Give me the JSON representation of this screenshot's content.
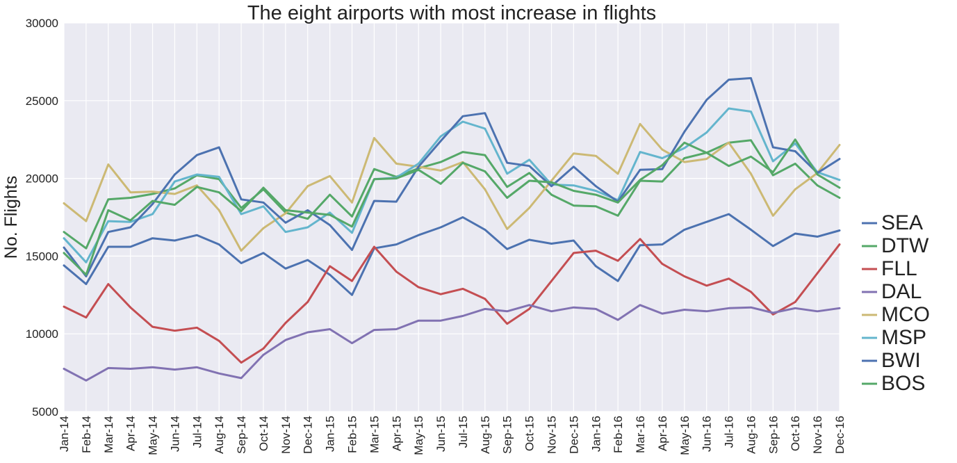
{
  "chart_data": {
    "type": "line",
    "title": "The eight airports with most increase in flights",
    "xlabel": "",
    "ylabel": "No. Flights",
    "ylim": [
      5000,
      30000
    ],
    "yticks": [
      5000,
      10000,
      15000,
      20000,
      25000,
      30000
    ],
    "grid": true,
    "legend_position": "right",
    "categories": [
      "Jan-14",
      "Feb-14",
      "Mar-14",
      "Apr-14",
      "May-14",
      "Jun-14",
      "Jul-14",
      "Aug-14",
      "Sep-14",
      "Oct-14",
      "Nov-14",
      "Dec-14",
      "Jan-15",
      "Feb-15",
      "Mar-15",
      "Apr-15",
      "May-15",
      "Jun-15",
      "Jul-15",
      "Aug-15",
      "Sep-15",
      "Oct-15",
      "Nov-15",
      "Dec-15",
      "Jan-16",
      "Feb-16",
      "Mar-16",
      "Apr-16",
      "May-16",
      "Jun-16",
      "Jul-16",
      "Aug-16",
      "Sep-16",
      "Oct-16",
      "Nov-16",
      "Dec-16"
    ],
    "series": [
      {
        "name": "SEA",
        "color": "#4c72b0",
        "values": [
          14400,
          13200,
          15600,
          15600,
          16150,
          16000,
          16350,
          15750,
          14550,
          15200,
          14200,
          14750,
          13800,
          12500,
          15500,
          15750,
          16350,
          16850,
          17500,
          16700,
          15450,
          16050,
          15800,
          16000,
          14350,
          13400,
          15700,
          15750,
          16700,
          17200,
          17700,
          16700,
          15650,
          16450,
          16250,
          16650
        ]
      },
      {
        "name": "DTW",
        "color": "#55a868",
        "values": [
          16550,
          15500,
          18650,
          18750,
          19000,
          19350,
          20200,
          19950,
          18100,
          19300,
          17800,
          17400,
          18950,
          17550,
          20600,
          20100,
          20650,
          21050,
          21700,
          21500,
          19450,
          20350,
          18950,
          18250,
          18200,
          17600,
          19850,
          19800,
          21300,
          21650,
          22300,
          22450,
          20200,
          20950,
          19550,
          18750
        ]
      },
      {
        "name": "FLL",
        "color": "#c44e52",
        "values": [
          11750,
          11050,
          13200,
          11700,
          10450,
          10200,
          10400,
          9550,
          8150,
          9050,
          10700,
          12050,
          14350,
          13400,
          15600,
          14000,
          13000,
          12550,
          12900,
          12250,
          10650,
          11600,
          13400,
          15200,
          15350,
          14700,
          16100,
          14500,
          13700,
          13100,
          13550,
          12700,
          11250,
          12050,
          13900,
          15750
        ]
      },
      {
        "name": "DAL",
        "color": "#8172b2",
        "values": [
          7750,
          7000,
          7800,
          7750,
          7850,
          7700,
          7850,
          7450,
          7150,
          8650,
          9600,
          10100,
          10300,
          9400,
          10250,
          10300,
          10850,
          10850,
          11150,
          11600,
          11450,
          11850,
          11450,
          11700,
          11600,
          10900,
          11850,
          11300,
          11550,
          11450,
          11650,
          11700,
          11350,
          11650,
          11450,
          11650
        ]
      },
      {
        "name": "MCO",
        "color": "#ccb974",
        "values": [
          18400,
          17250,
          20900,
          19100,
          19150,
          19000,
          19550,
          17950,
          15350,
          16800,
          17750,
          19500,
          20150,
          18450,
          22600,
          20950,
          20750,
          20500,
          21050,
          19300,
          16750,
          18100,
          19850,
          21600,
          21450,
          20300,
          23500,
          21850,
          21050,
          21250,
          22300,
          20300,
          17600,
          19300,
          20350,
          22150
        ]
      },
      {
        "name": "MSP",
        "color": "#64b5cd",
        "values": [
          16150,
          14600,
          17250,
          17200,
          17700,
          19800,
          20250,
          20100,
          17700,
          18200,
          16550,
          16850,
          17800,
          16500,
          19950,
          20050,
          20950,
          22700,
          23650,
          23200,
          20300,
          21200,
          19600,
          19550,
          19200,
          18600,
          21700,
          21300,
          21950,
          22950,
          24500,
          24300,
          21100,
          22250,
          20400,
          19900
        ]
      },
      {
        "name": "BWI",
        "color": "#4c72b0",
        "values": [
          15550,
          13700,
          16550,
          16850,
          18350,
          20250,
          21500,
          22000,
          18650,
          18450,
          17150,
          17950,
          17000,
          15400,
          18550,
          18500,
          20750,
          22400,
          24000,
          24200,
          21000,
          20800,
          19500,
          20750,
          19500,
          18500,
          20550,
          20600,
          23000,
          25050,
          26350,
          26450,
          22000,
          21750,
          20350,
          21250
        ]
      },
      {
        "name": "BOS",
        "color": "#55a868",
        "values": [
          15200,
          13800,
          17950,
          17300,
          18550,
          18300,
          19450,
          19100,
          17900,
          19400,
          17950,
          17800,
          17650,
          16900,
          19950,
          20000,
          20550,
          19650,
          21000,
          20450,
          18750,
          19850,
          19750,
          19200,
          18950,
          18450,
          19900,
          20850,
          22300,
          21650,
          20800,
          21400,
          20400,
          22500,
          20250,
          19400
        ]
      }
    ]
  }
}
